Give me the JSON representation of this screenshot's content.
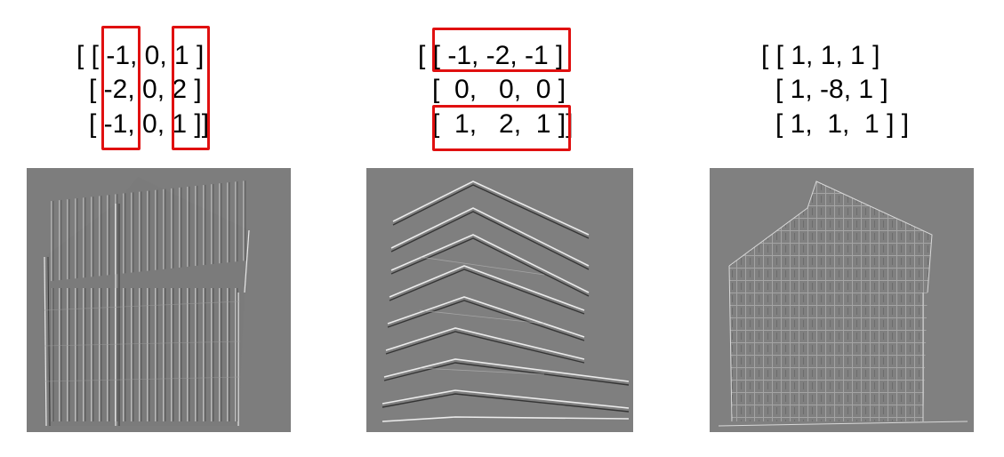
{
  "kernels": [
    {
      "name": "kernel-1",
      "rows": [
        "[ [ -1, 0, 1 ]",
        "[ -2, 0, 2 ]",
        "[ -1, 0, 1 ]]"
      ],
      "highlight_color": "#e01010"
    },
    {
      "name": "kernel-2",
      "rows": [
        "[ [ -1, -2, -1 ]",
        "[  0,   0,  0 ]",
        "[  1,   2,  1 ]]"
      ],
      "highlight_color": "#e01010"
    },
    {
      "name": "kernel-3",
      "rows": [
        "[ [ 1, 1, 1 ]",
        "[ 1, -8, 1 ]",
        "[ 1,  1,  1 ] ]"
      ],
      "highlight_color": null
    }
  ],
  "images": [
    {
      "name": "vertical-edge-result",
      "background": "#7d7d7d"
    },
    {
      "name": "horizontal-edge-result",
      "background": "#7f7f7f"
    },
    {
      "name": "laplacian-result",
      "background": "#808080"
    }
  ]
}
